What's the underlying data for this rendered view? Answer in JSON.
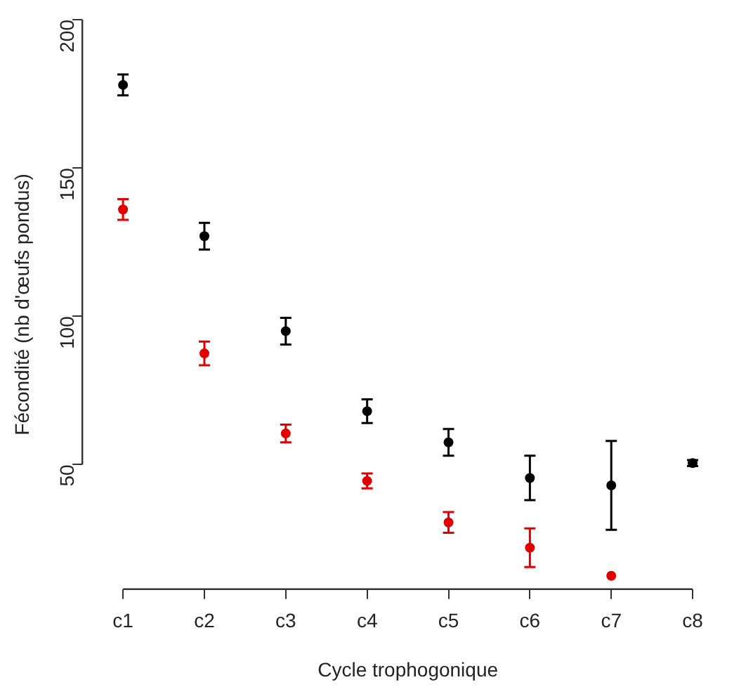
{
  "chart_data": {
    "type": "scatter",
    "xlabel": "Cycle trophogonique",
    "ylabel": "Fécondité (nb d'œufs pondus)",
    "categories": [
      "c1",
      "c2",
      "c3",
      "c4",
      "c5",
      "c6",
      "c7",
      "c8"
    ],
    "series": [
      {
        "color": "#000000",
        "values": [
          178,
          127,
          95,
          68,
          57.5,
          45.5,
          43,
          50.5
        ],
        "errors": [
          3.5,
          4.5,
          4.5,
          4,
          4.5,
          7.5,
          15,
          1
        ]
      },
      {
        "color": "#e00000",
        "values": [
          136,
          87.5,
          60.5,
          44.5,
          30.5,
          22,
          12.5,
          null
        ],
        "errors": [
          3.5,
          4,
          3,
          2.5,
          3.5,
          6.5,
          null,
          null
        ]
      }
    ],
    "ylim": [
      8,
      200
    ],
    "yticks": [
      50,
      100,
      150,
      200
    ],
    "grid": false,
    "legend": false,
    "marker": "circle"
  }
}
